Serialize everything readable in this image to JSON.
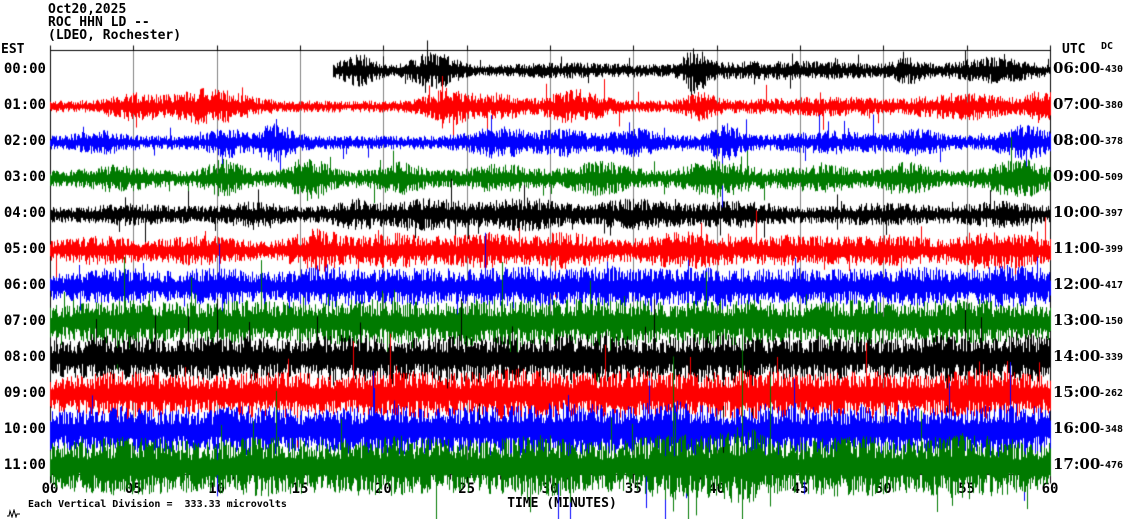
{
  "title": {
    "date": "Oct20,2025",
    "station": "ROC HHN LD --",
    "site": "(LDEO, Rochester)"
  },
  "axes": {
    "left_header": "EST",
    "right_header": "UTC",
    "dc_header": "DC",
    "x_label": "TIME (MINUTES)",
    "footnote": "Each Vertical Division =  333.33 microvolts"
  },
  "chart_data": {
    "type": "line",
    "kind": "helicorder-seismogram",
    "title": "Oct20,2025 ROC HHN LD -- (LDEO, Rochester)",
    "xlabel": "TIME (MINUTES)",
    "x_axis": {
      "min": 0,
      "max": 60,
      "major_tick": 5,
      "minor_tick": 1,
      "tick_labels": [
        "00",
        "05",
        "10",
        "15",
        "20",
        "25",
        "30",
        "35",
        "40",
        "45",
        "50",
        "55",
        "60"
      ]
    },
    "vertical_division_microvolts": 333.33,
    "grid": "on",
    "colors": {
      "trace_cycle": [
        "#000000",
        "#ff0000",
        "#0000ff",
        "#007a00"
      ],
      "grid": "#808080",
      "frame": "#000000"
    },
    "rows": [
      {
        "est": "00:00",
        "utc": "06:00",
        "dc": "-430",
        "color": "#000000",
        "start_min": 17,
        "base_amp": 5,
        "bursts": [
          [
            18.5,
            1.2,
            12
          ],
          [
            23,
            1.5,
            14
          ],
          [
            31,
            4,
            3
          ],
          [
            38.7,
            0.8,
            16
          ],
          [
            44,
            6,
            5
          ],
          [
            51.5,
            1,
            8
          ],
          [
            56.5,
            2.5,
            9
          ]
        ],
        "spikes": []
      },
      {
        "est": "01:00",
        "utc": "07:00",
        "dc": "-380",
        "color": "#ff0000",
        "start_min": 0,
        "base_amp": 6,
        "bursts": [
          [
            5,
            1.5,
            8
          ],
          [
            9.5,
            2.5,
            13
          ],
          [
            24,
            1.5,
            13
          ],
          [
            27,
            1.5,
            8
          ],
          [
            31.5,
            1.8,
            12
          ],
          [
            39,
            1,
            9
          ],
          [
            47,
            5,
            4
          ],
          [
            55,
            3,
            8
          ],
          [
            59.5,
            1,
            10
          ]
        ],
        "spikes": []
      },
      {
        "est": "02:00",
        "utc": "08:00",
        "dc": "-378",
        "color": "#0000ff",
        "start_min": 0,
        "base_amp": 7,
        "bursts": [
          [
            3,
            1.5,
            6
          ],
          [
            10.5,
            1,
            10
          ],
          [
            13.5,
            1.2,
            14
          ],
          [
            27,
            2,
            10
          ],
          [
            31,
            1.5,
            8
          ],
          [
            35,
            1.5,
            8
          ],
          [
            40.5,
            1,
            13
          ],
          [
            47,
            3,
            5
          ],
          [
            52,
            1.5,
            7
          ],
          [
            58.5,
            1.5,
            12
          ]
        ],
        "spikes": [
          [
            40.3,
            10,
            70
          ],
          [
            13.8,
            8,
            40
          ]
        ]
      },
      {
        "est": "03:00",
        "utc": "09:00",
        "dc": "-509",
        "color": "#007a00",
        "start_min": 0,
        "base_amp": 8,
        "bursts": [
          [
            4,
            2,
            6
          ],
          [
            10.5,
            1.2,
            12
          ],
          [
            15.5,
            1.2,
            16
          ],
          [
            21,
            1.5,
            9
          ],
          [
            27,
            2,
            7
          ],
          [
            33,
            2,
            10
          ],
          [
            40,
            2,
            12
          ],
          [
            46,
            2,
            7
          ],
          [
            51.5,
            1.5,
            9
          ],
          [
            58,
            1.8,
            13
          ]
        ],
        "spikes": []
      },
      {
        "est": "04:00",
        "utc": "10:00",
        "dc": "-397",
        "color": "#000000",
        "start_min": 0,
        "base_amp": 8,
        "bursts": [
          [
            5,
            2,
            4
          ],
          [
            12,
            2,
            5
          ],
          [
            18.5,
            1.5,
            8
          ],
          [
            23,
            2.5,
            9
          ],
          [
            28.5,
            2.5,
            9
          ],
          [
            35,
            2.5,
            8
          ],
          [
            41,
            3,
            6
          ],
          [
            50,
            3,
            4
          ],
          [
            57,
            2,
            6
          ]
        ],
        "spikes": []
      },
      {
        "est": "05:00",
        "utc": "11:00",
        "dc": "-399",
        "color": "#ff0000",
        "start_min": 0,
        "base_amp": 10,
        "bursts": [
          [
            3,
            2,
            5
          ],
          [
            9,
            2,
            6
          ],
          [
            16,
            1.5,
            12
          ],
          [
            20.5,
            2.5,
            8
          ],
          [
            26,
            2.5,
            8
          ],
          [
            31,
            2,
            9
          ],
          [
            38,
            2.5,
            9
          ],
          [
            44,
            3,
            6
          ],
          [
            50,
            3,
            6
          ],
          [
            57,
            2.5,
            9
          ]
        ],
        "spikes": []
      },
      {
        "est": "06:00",
        "utc": "12:00",
        "dc": "-417",
        "color": "#0000ff",
        "start_min": 0,
        "base_amp": 13,
        "bursts": [
          [
            4,
            2.5,
            6
          ],
          [
            10,
            2.5,
            6
          ],
          [
            16.5,
            2,
            9
          ],
          [
            22,
            3,
            6
          ],
          [
            28,
            3,
            7
          ],
          [
            34,
            3,
            8
          ],
          [
            40,
            3,
            7
          ],
          [
            46,
            3,
            6
          ],
          [
            52,
            3,
            7
          ],
          [
            58,
            2.5,
            9
          ]
        ],
        "spikes": []
      },
      {
        "est": "07:00",
        "utc": "13:00",
        "dc": "-150",
        "color": "#007a00",
        "start_min": 0,
        "base_amp": 17,
        "bursts": [
          [
            5,
            3,
            6
          ],
          [
            12,
            3,
            6
          ],
          [
            19,
            3,
            7
          ],
          [
            26,
            3,
            7
          ],
          [
            33,
            4,
            8
          ],
          [
            41,
            3,
            7
          ],
          [
            48,
            3,
            6
          ],
          [
            55,
            3,
            7
          ]
        ],
        "spikes": []
      },
      {
        "est": "08:00",
        "utc": "14:00",
        "dc": "-339",
        "color": "#000000",
        "start_min": 0,
        "base_amp": 17,
        "bursts": [
          [
            4,
            3,
            6
          ],
          [
            11,
            3,
            6
          ],
          [
            18,
            3,
            7
          ],
          [
            25,
            3,
            7
          ],
          [
            32,
            4,
            8
          ],
          [
            40,
            3,
            8
          ],
          [
            47,
            3,
            6
          ],
          [
            54,
            3,
            7
          ],
          [
            59,
            2,
            7
          ]
        ],
        "spikes": [
          [
            40.4,
            25,
            110
          ],
          [
            42.1,
            20,
            90
          ]
        ]
      },
      {
        "est": "09:00",
        "utc": "15:00",
        "dc": "-262",
        "color": "#ff0000",
        "start_min": 0,
        "base_amp": 18,
        "bursts": [
          [
            5,
            3,
            6
          ],
          [
            13,
            3,
            6
          ],
          [
            21,
            3,
            7
          ],
          [
            28,
            3,
            8
          ],
          [
            35,
            3,
            7
          ],
          [
            42,
            3,
            7
          ],
          [
            49,
            3,
            6
          ],
          [
            56,
            3,
            7
          ]
        ],
        "spikes": []
      },
      {
        "est": "10:00",
        "utc": "16:00",
        "dc": "-348",
        "color": "#0000ff",
        "start_min": 0,
        "base_amp": 19,
        "bursts": [
          [
            4,
            3,
            6
          ],
          [
            12,
            3,
            6
          ],
          [
            20,
            3,
            7
          ],
          [
            27,
            3,
            7
          ],
          [
            31.5,
            2,
            10
          ],
          [
            37,
            2.5,
            12
          ],
          [
            44,
            3,
            7
          ],
          [
            51,
            3,
            7
          ],
          [
            57.5,
            2.5,
            8
          ]
        ],
        "spikes": [
          [
            31.2,
            15,
            110
          ],
          [
            36.9,
            25,
            195
          ],
          [
            38.3,
            20,
            140
          ],
          [
            30.5,
            10,
            90
          ]
        ]
      },
      {
        "est": "11:00",
        "utc": "17:00",
        "dc": "-476",
        "color": "#007a00",
        "start_min": 0,
        "base_amp": 24,
        "bursts": [
          [
            5,
            3,
            6
          ],
          [
            13,
            3,
            6
          ],
          [
            21,
            3,
            7
          ],
          [
            29,
            3,
            8
          ],
          [
            37.5,
            2.5,
            10
          ],
          [
            41.6,
            1.5,
            16
          ],
          [
            48,
            3,
            7
          ],
          [
            55,
            3,
            8
          ]
        ],
        "spikes": [
          [
            41.5,
            140,
            55
          ],
          [
            37.4,
            110,
            45
          ],
          [
            43.2,
            90,
            40
          ]
        ]
      }
    ]
  }
}
